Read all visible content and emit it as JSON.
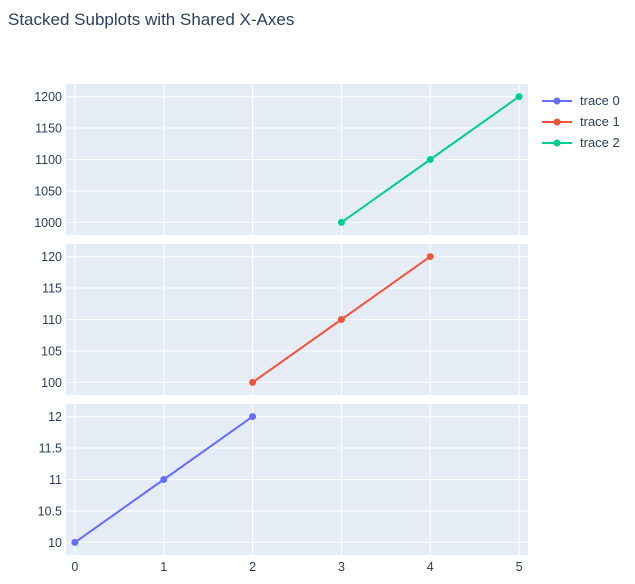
{
  "title": "Stacked Subplots with Shared X-Axes",
  "chart_data": {
    "type": "line",
    "shared_xaxis": true,
    "x_ticks": [
      0,
      1,
      2,
      3,
      4,
      5
    ],
    "xlim": [
      -0.1,
      5.1
    ],
    "grid": true,
    "legend_position": "top-right",
    "series": [
      {
        "name": "trace 0",
        "color": "#636efa",
        "x": [
          0,
          1,
          2
        ],
        "y": [
          10,
          11,
          12
        ]
      },
      {
        "name": "trace 1",
        "color": "#EF553B",
        "x": [
          2,
          3,
          4
        ],
        "y": [
          100,
          110,
          120
        ]
      },
      {
        "name": "trace 2",
        "color": "#00cc96",
        "x": [
          3,
          4,
          5
        ],
        "y": [
          1000,
          1100,
          1200
        ]
      }
    ],
    "subplots": [
      {
        "series_index": 2,
        "ylim": [
          980,
          1220
        ],
        "y_ticks": [
          1000,
          1050,
          1100,
          1150,
          1200
        ]
      },
      {
        "series_index": 1,
        "ylim": [
          98,
          122
        ],
        "y_ticks": [
          100,
          105,
          110,
          115,
          120
        ]
      },
      {
        "series_index": 0,
        "ylim": [
          9.8,
          12.2
        ],
        "y_ticks": [
          10,
          10.5,
          11,
          11.5,
          12
        ]
      }
    ]
  }
}
